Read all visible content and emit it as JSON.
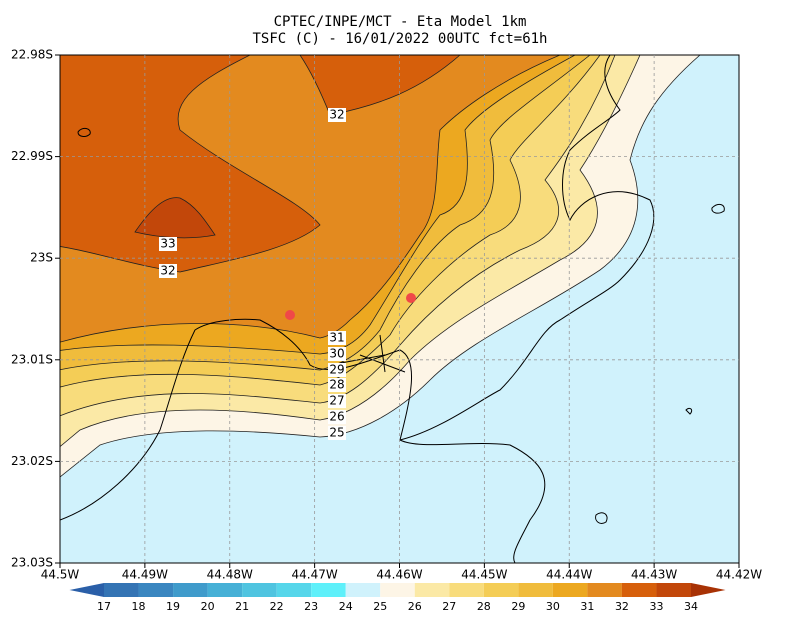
{
  "title": [
    "CPTEC/INPE/MCT -  Eta Model 1km",
    "TSFC (C) - 16/01/2022 00UTC fct=61h"
  ],
  "xticks": [
    "44.5W",
    "44.49W",
    "44.48W",
    "44.47W",
    "44.46W",
    "44.45W",
    "44.44W",
    "44.43W",
    "44.42W"
  ],
  "yticks": [
    "22.98S",
    "22.99S",
    "23S",
    "23.01S",
    "23.02S",
    "23.03S"
  ],
  "contour_labels": [
    32,
    33,
    32,
    31,
    30,
    29,
    28,
    27,
    26,
    25
  ],
  "colorbar": {
    "levels": [
      17,
      18,
      19,
      20,
      21,
      22,
      23,
      24,
      25,
      26,
      27,
      28,
      29,
      30,
      31,
      32,
      33,
      34
    ],
    "colors": [
      "#2a5fa8",
      "#3474b4",
      "#3a86c0",
      "#3f9bcb",
      "#46b0d6",
      "#4fc4e0",
      "#56d6ea",
      "#5ef0fa",
      "#d0f2fc",
      "#fdf5e6",
      "#fbe9a6",
      "#f8dc7c",
      "#f4cd56",
      "#f0bc3c",
      "#eca820",
      "#e38a1f",
      "#d65f0b",
      "#c2470a",
      "#a83205"
    ]
  }
}
